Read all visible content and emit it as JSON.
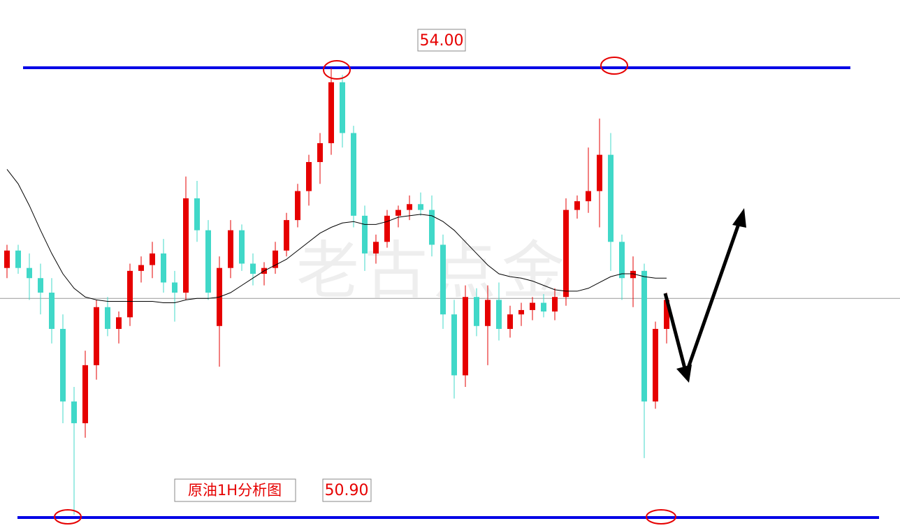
{
  "chart_data": {
    "type": "candlestick",
    "title": "原油1H分析图",
    "watermark": "老古点金",
    "levels": [
      {
        "value": 54.0,
        "label": "54.00"
      },
      {
        "value": 50.9,
        "label": "50.90"
      }
    ],
    "level_color": "#0000e6",
    "reference_line": 52.41,
    "ylim": [
      50.9,
      54.0
    ],
    "up_color": "#e60000",
    "down_color": "#40d8c8",
    "ohlc": [
      [
        52.62,
        52.78,
        52.55,
        52.74
      ],
      [
        52.74,
        52.78,
        52.58,
        52.62
      ],
      [
        52.62,
        52.72,
        52.4,
        52.55
      ],
      [
        52.55,
        52.65,
        52.3,
        52.45
      ],
      [
        52.45,
        52.55,
        52.1,
        52.2
      ],
      [
        52.2,
        52.3,
        51.55,
        51.7
      ],
      [
        51.7,
        51.8,
        50.92,
        51.55
      ],
      [
        51.55,
        52.05,
        51.45,
        51.95
      ],
      [
        51.95,
        52.4,
        51.85,
        52.35
      ],
      [
        52.35,
        52.42,
        52.15,
        52.2
      ],
      [
        52.2,
        52.32,
        52.1,
        52.28
      ],
      [
        52.28,
        52.65,
        52.22,
        52.6
      ],
      [
        52.6,
        52.7,
        52.52,
        52.64
      ],
      [
        52.64,
        52.8,
        52.55,
        52.72
      ],
      [
        52.72,
        52.82,
        52.45,
        52.52
      ],
      [
        52.52,
        52.6,
        52.25,
        52.45
      ],
      [
        52.45,
        53.25,
        52.4,
        53.1
      ],
      [
        53.1,
        53.22,
        52.8,
        52.88
      ],
      [
        52.88,
        52.95,
        52.4,
        52.45
      ],
      [
        52.22,
        52.7,
        51.94,
        52.62
      ],
      [
        52.62,
        52.95,
        52.55,
        52.88
      ],
      [
        52.88,
        52.92,
        52.6,
        52.65
      ],
      [
        52.65,
        52.72,
        52.5,
        52.58
      ],
      [
        52.58,
        52.66,
        52.5,
        52.62
      ],
      [
        52.62,
        52.8,
        52.58,
        52.74
      ],
      [
        52.74,
        53.0,
        52.7,
        52.95
      ],
      [
        52.95,
        53.2,
        52.9,
        53.15
      ],
      [
        53.15,
        53.4,
        53.05,
        53.35
      ],
      [
        53.35,
        53.55,
        53.2,
        53.48
      ],
      [
        53.48,
        54.0,
        53.4,
        53.9
      ],
      [
        53.9,
        53.95,
        53.45,
        53.55
      ],
      [
        53.55,
        53.6,
        52.9,
        52.98
      ],
      [
        52.98,
        53.05,
        52.6,
        52.72
      ],
      [
        52.72,
        52.85,
        52.65,
        52.8
      ],
      [
        52.8,
        53.02,
        52.76,
        52.98
      ],
      [
        52.98,
        53.05,
        52.9,
        53.02
      ],
      [
        53.02,
        53.12,
        52.95,
        53.06
      ],
      [
        53.06,
        53.14,
        52.98,
        53.02
      ],
      [
        53.02,
        53.12,
        52.7,
        52.78
      ],
      [
        52.78,
        52.85,
        52.2,
        52.3
      ],
      [
        52.3,
        52.4,
        51.72,
        51.88
      ],
      [
        51.88,
        52.5,
        51.8,
        52.42
      ],
      [
        52.42,
        52.48,
        52.15,
        52.22
      ],
      [
        52.22,
        52.5,
        51.95,
        52.4
      ],
      [
        52.4,
        52.52,
        52.12,
        52.2
      ],
      [
        52.2,
        52.36,
        52.14,
        52.3
      ],
      [
        52.3,
        52.38,
        52.22,
        52.33
      ],
      [
        52.33,
        52.42,
        52.26,
        52.38
      ],
      [
        52.38,
        52.44,
        52.28,
        52.32
      ],
      [
        52.32,
        52.48,
        52.26,
        52.42
      ],
      [
        52.42,
        53.1,
        52.36,
        53.02
      ],
      [
        53.02,
        53.12,
        52.96,
        53.08
      ],
      [
        53.08,
        53.45,
        53.0,
        53.15
      ],
      [
        53.15,
        53.65,
        52.9,
        53.4
      ],
      [
        53.4,
        53.55,
        52.6,
        52.8
      ],
      [
        52.8,
        52.85,
        52.4,
        52.55
      ],
      [
        52.55,
        52.7,
        52.35,
        52.6
      ],
      [
        52.6,
        52.65,
        51.31,
        51.7
      ],
      [
        51.7,
        52.25,
        51.65,
        52.2
      ],
      [
        52.2,
        52.45,
        52.1,
        52.4
      ]
    ],
    "ma": {
      "color": "#000000",
      "values": [
        53.3,
        53.2,
        53.05,
        52.88,
        52.72,
        52.58,
        52.48,
        52.42,
        52.4,
        52.39,
        52.39,
        52.39,
        52.39,
        52.39,
        52.38,
        52.38,
        52.4,
        52.41,
        52.41,
        52.42,
        52.45,
        52.5,
        52.55,
        52.6,
        52.64,
        52.68,
        52.74,
        52.8,
        52.86,
        52.9,
        52.93,
        52.94,
        52.92,
        52.92,
        52.94,
        52.97,
        52.98,
        52.99,
        52.98,
        52.94,
        52.88,
        52.8,
        52.72,
        52.64,
        52.58,
        52.56,
        52.55,
        52.53,
        52.5,
        52.47,
        52.46,
        52.46,
        52.48,
        52.52,
        52.56,
        52.58,
        52.58,
        52.56,
        52.55,
        52.55
      ]
    }
  }
}
